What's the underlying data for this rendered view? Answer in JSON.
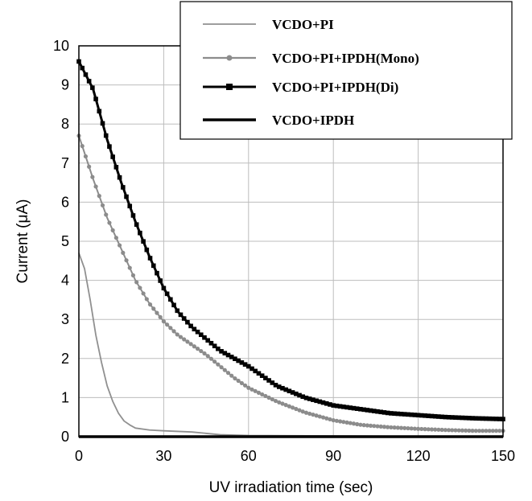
{
  "chart_data": {
    "type": "line",
    "title": "",
    "xlabel": "UV irradiation time (sec)",
    "ylabel": "Current (μA)",
    "xlim": [
      0,
      150
    ],
    "ylim": [
      0,
      10
    ],
    "xticks": [
      "0",
      "30",
      "60",
      "90",
      "120",
      "150"
    ],
    "yticks": [
      "0",
      "1",
      "2",
      "3",
      "4",
      "5",
      "6",
      "7",
      "8",
      "9",
      "10"
    ],
    "grid": true,
    "legend_position": "top-right",
    "series": [
      {
        "name": "VCDO+PI",
        "color": "#909090",
        "marker": "none",
        "x": [
          0,
          2,
          4,
          6,
          8,
          10,
          12,
          14,
          16,
          18,
          20,
          25,
          30,
          40,
          50,
          60,
          90,
          120,
          150
        ],
        "y": [
          4.7,
          4.3,
          3.5,
          2.6,
          1.9,
          1.3,
          0.9,
          0.6,
          0.4,
          0.3,
          0.22,
          0.17,
          0.15,
          0.12,
          0.05,
          0.03,
          0.02,
          0.01,
          0.0
        ]
      },
      {
        "name": "VCDO+PI+IPDH(Mono)",
        "color": "#8c8c8c",
        "marker": "circle",
        "x": [
          0,
          5,
          10,
          15,
          20,
          25,
          30,
          35,
          40,
          45,
          50,
          55,
          60,
          70,
          80,
          90,
          100,
          110,
          120,
          130,
          140,
          150
        ],
        "y": [
          7.7,
          6.6,
          5.6,
          4.8,
          4.0,
          3.4,
          2.95,
          2.6,
          2.35,
          2.1,
          1.8,
          1.5,
          1.25,
          0.9,
          0.62,
          0.42,
          0.3,
          0.24,
          0.2,
          0.17,
          0.15,
          0.15
        ]
      },
      {
        "name": "VCDO+PI+IPDH(Di)",
        "color": "#000000",
        "marker": "square",
        "x": [
          0,
          5,
          10,
          15,
          20,
          25,
          30,
          35,
          40,
          45,
          50,
          55,
          60,
          70,
          80,
          90,
          100,
          110,
          120,
          130,
          140,
          150
        ],
        "y": [
          9.6,
          8.9,
          7.6,
          6.5,
          5.5,
          4.6,
          3.8,
          3.2,
          2.8,
          2.5,
          2.2,
          2.0,
          1.8,
          1.3,
          1.0,
          0.8,
          0.7,
          0.6,
          0.55,
          0.5,
          0.47,
          0.45
        ]
      },
      {
        "name": "VCDO+IPDH",
        "color": "#000000",
        "marker": "none",
        "x": [
          0,
          30,
          60,
          90,
          120,
          150
        ],
        "y": [
          0.0,
          0.0,
          0.0,
          0.0,
          0.0,
          0.0
        ]
      }
    ]
  }
}
